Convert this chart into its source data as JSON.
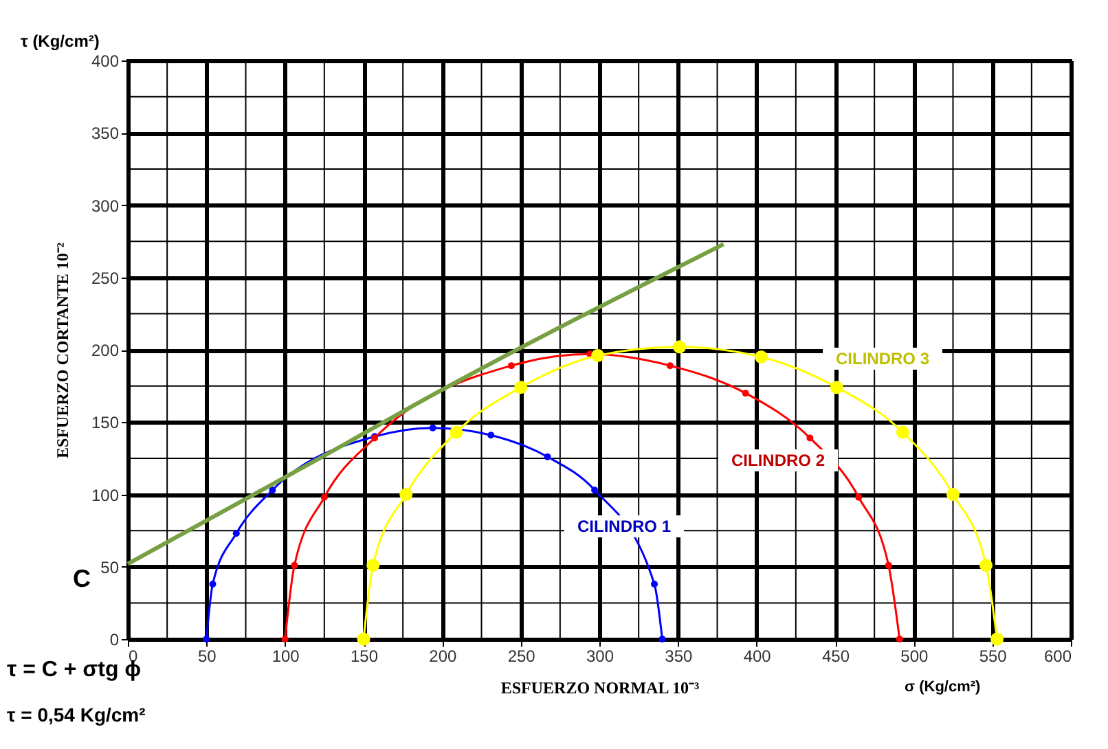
{
  "chart_data": {
    "type": "line",
    "xlabel": "ESFUERZO NORMAL 10⁻³",
    "ylabel": "ESFUERZO CORTANTE 10⁻²",
    "xlim": [
      0,
      600
    ],
    "xticks": [
      0,
      50,
      100,
      150,
      200,
      250,
      300,
      350,
      400,
      450,
      500,
      550,
      600
    ],
    "ylim": [
      0,
      400
    ],
    "yticks": [
      0,
      50,
      100,
      150,
      200,
      250,
      300,
      350,
      400
    ],
    "grid": true,
    "marker": "circle",
    "line_style": "solid",
    "series": [
      {
        "name": "CILINDRO 1",
        "color": "#0000ff",
        "x": [
          50,
          54,
          69,
          92,
          157,
          194,
          231,
          267,
          297,
          335,
          340
        ],
        "values": [
          0,
          38,
          73,
          103,
          140,
          146,
          141,
          126,
          103,
          38,
          0
        ]
      },
      {
        "name": "CILINDRO 2",
        "color": "#ff0000",
        "x": [
          100,
          106,
          125,
          157,
          244,
          294,
          345,
          393,
          434,
          465,
          484,
          491
        ],
        "values": [
          0,
          51,
          98,
          139,
          189,
          197,
          189,
          170,
          139,
          98,
          51,
          0
        ]
      },
      {
        "name": "CILINDRO 3",
        "color": "#ffff00",
        "x": [
          150,
          156,
          177,
          209,
          250,
          299,
          351,
          403,
          451,
          493,
          525,
          546,
          553
        ],
        "values": [
          0,
          51,
          100,
          143,
          174,
          196,
          202,
          195,
          174,
          143,
          100,
          51,
          0
        ]
      },
      {
        "color": "#77a043",
        "marker": "none",
        "x": [
          0,
          122,
          196,
          379
        ],
        "values": [
          52,
          125,
          170,
          273
        ]
      }
    ],
    "annotations": [
      "τ (Kg/cm²)",
      "C",
      "τ = C + σtg ϕ",
      "τ = 0,54 Kg/cm²",
      "σ (Kg/cm²)"
    ]
  }
}
